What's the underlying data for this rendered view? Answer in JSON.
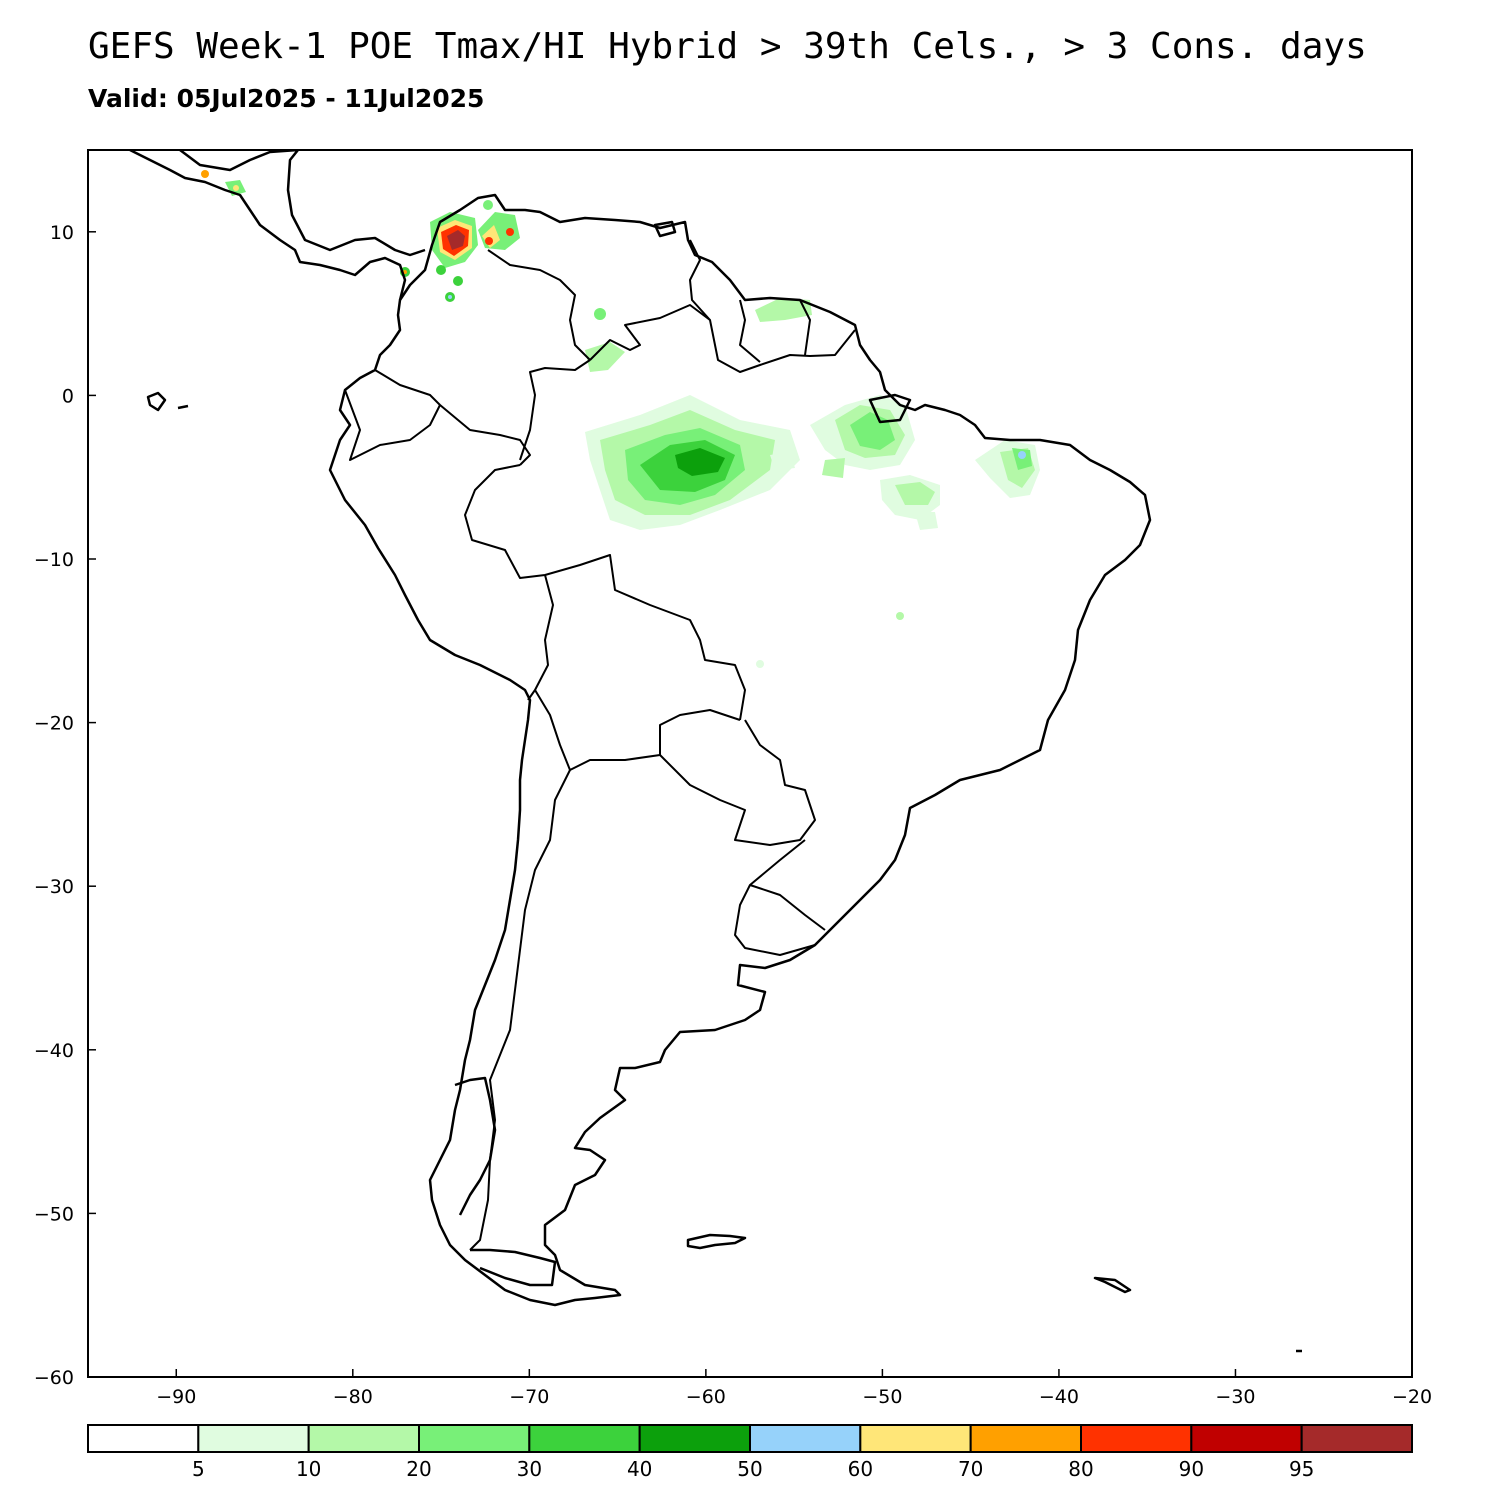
{
  "title": "GEFS Week-1 POE Tmax/HI Hybrid > 39th Cels., > 3 Cons. days",
  "subtitle": "Valid: 05Jul2025 - 11Jul2025",
  "map": {
    "lon_range": [
      -95,
      -20
    ],
    "lat_range": [
      -60,
      15
    ],
    "x_ticks": [
      "-90",
      "-80",
      "-70",
      "-60",
      "-50",
      "-40",
      "-30",
      "-20"
    ],
    "x_tick_values": [
      -90,
      -80,
      -70,
      -60,
      -50,
      -40,
      -30,
      -20
    ],
    "y_ticks": [
      "10",
      "0",
      "-10",
      "-20",
      "-30",
      "-40",
      "-50",
      "-60"
    ],
    "y_tick_values": [
      10,
      0,
      -10,
      -20,
      -30,
      -40,
      -50,
      -60
    ],
    "region": "South America",
    "coastline_color": "#000000"
  },
  "colorbar": {
    "colors": [
      "#ffffff",
      "#e0fce0",
      "#b4f8a8",
      "#78f078",
      "#3cd23c",
      "#0ca00c",
      "#96d2fa",
      "#ffe678",
      "#ffa000",
      "#ff3200",
      "#c00000",
      "#a52a2a"
    ],
    "labels": [
      "5",
      "10",
      "20",
      "30",
      "40",
      "50",
      "60",
      "70",
      "80",
      "90",
      "95"
    ]
  },
  "probability_areas": [
    {
      "name": "northern-colombia",
      "lon": -73.5,
      "lat": 9.2,
      "level": 95
    },
    {
      "name": "venezuela-west",
      "lon": -71.5,
      "lat": 9.8,
      "level": 80
    },
    {
      "name": "central-amazon",
      "lon": -61.0,
      "lat": -3.8,
      "level": 40
    },
    {
      "name": "para-east",
      "lon": -49.0,
      "lat": -2.5,
      "level": 30
    },
    {
      "name": "piaui",
      "lon": -42.0,
      "lat": -3.7,
      "level": 60
    },
    {
      "name": "tocantins",
      "lon": -48.5,
      "lat": -5.8,
      "level": 20
    },
    {
      "name": "guianas",
      "lon": -55.0,
      "lat": 5.5,
      "level": 10
    },
    {
      "name": "central-america",
      "lon": -86.5,
      "lat": 12.5,
      "level": 30
    }
  ]
}
